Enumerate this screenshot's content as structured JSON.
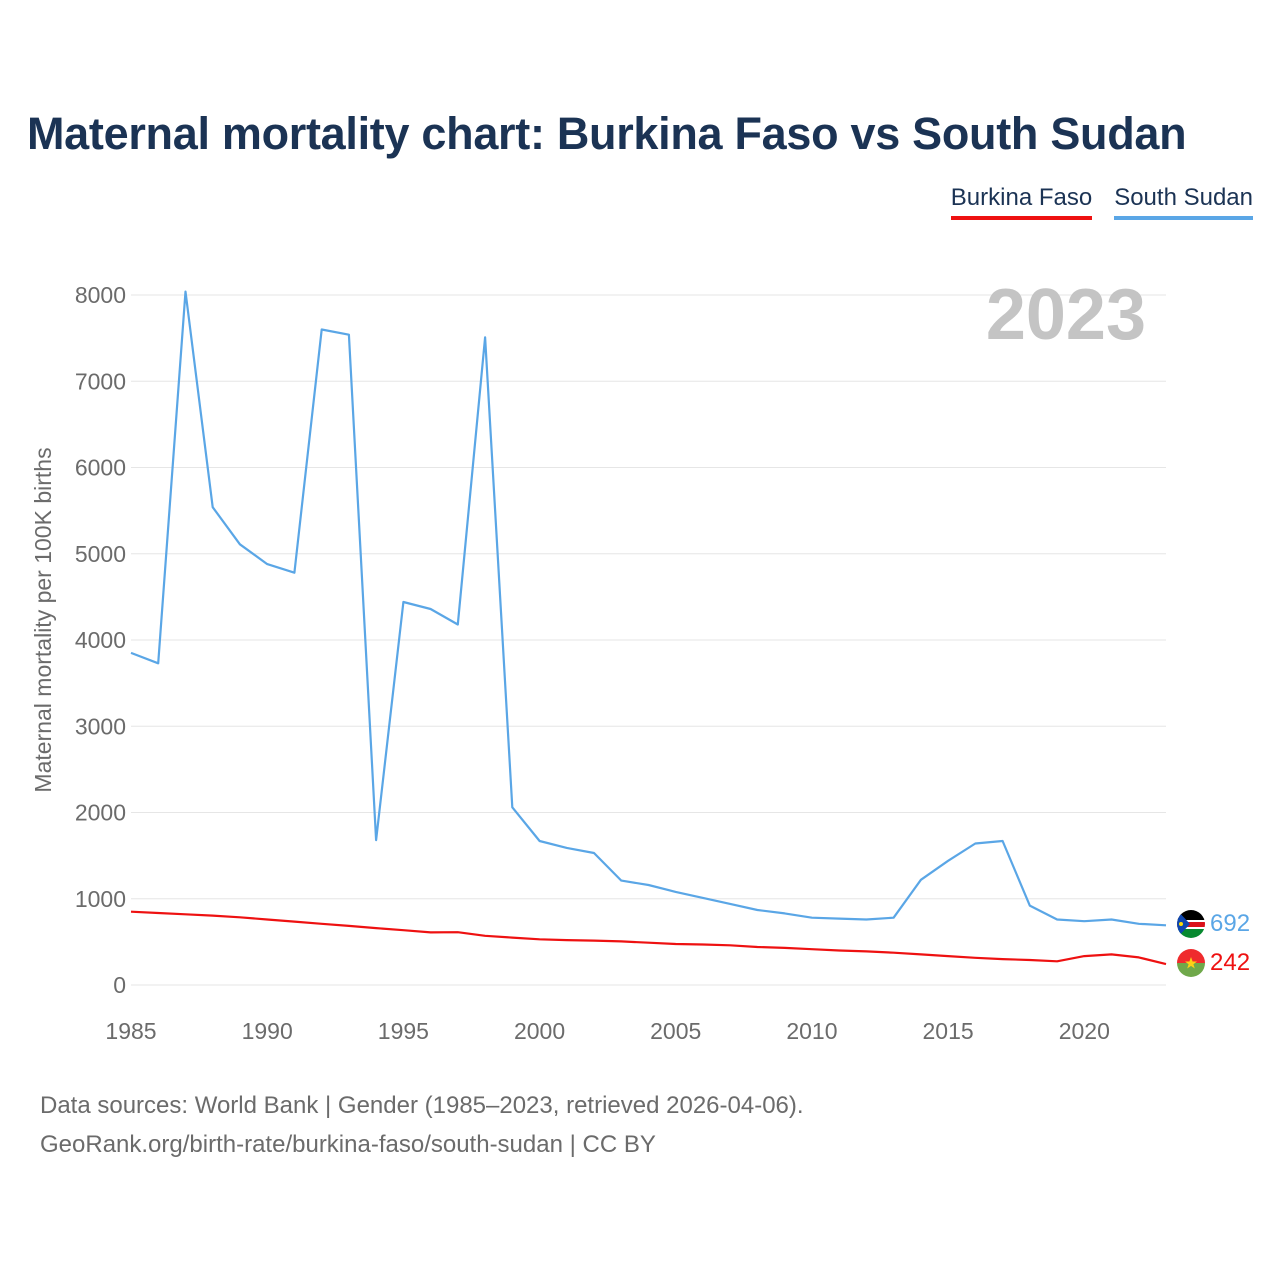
{
  "title": "Maternal mortality chart: Burkina Faso vs South Sudan",
  "legend": [
    {
      "label": "Burkina Faso",
      "color": "#ee1111"
    },
    {
      "label": "South Sudan",
      "color": "#5aa6e6"
    }
  ],
  "year_label": "2023",
  "source": {
    "line1": "Data sources: World Bank | Gender (1985–2023, retrieved 2026-04-06).",
    "line2": "GeoRank.org/birth-rate/burkina-faso/south-sudan | CC BY"
  },
  "chart_data": {
    "type": "line",
    "title": "Maternal mortality chart: Burkina Faso vs South Sudan",
    "xlabel": "",
    "ylabel": "Maternal mortality per 100K births",
    "xlim": [
      1985,
      2023
    ],
    "ylim": [
      0,
      8000
    ],
    "x_ticks": [
      1985,
      1990,
      1995,
      2000,
      2005,
      2010,
      2015,
      2020
    ],
    "y_ticks": [
      0,
      1000,
      2000,
      3000,
      4000,
      5000,
      6000,
      7000,
      8000
    ],
    "grid": true,
    "legend_position": "top-right",
    "x": [
      1985,
      1986,
      1987,
      1988,
      1989,
      1990,
      1991,
      1992,
      1993,
      1994,
      1995,
      1996,
      1997,
      1998,
      1999,
      2000,
      2001,
      2002,
      2003,
      2004,
      2005,
      2006,
      2007,
      2008,
      2009,
      2010,
      2011,
      2012,
      2013,
      2014,
      2015,
      2016,
      2017,
      2018,
      2019,
      2020,
      2021,
      2022,
      2023
    ],
    "series": [
      {
        "name": "Burkina Faso",
        "color": "#ee1111",
        "end_label": "242",
        "values": [
          850,
          835,
          820,
          805,
          785,
          760,
          735,
          710,
          685,
          660,
          635,
          610,
          612,
          570,
          550,
          530,
          520,
          515,
          505,
          490,
          475,
          470,
          460,
          440,
          430,
          415,
          400,
          390,
          375,
          355,
          335,
          315,
          300,
          290,
          275,
          335,
          355,
          320,
          242
        ]
      },
      {
        "name": "South Sudan",
        "color": "#5aa6e6",
        "end_label": "692",
        "values": [
          3850,
          3730,
          8040,
          5540,
          5110,
          4880,
          4780,
          7600,
          7540,
          1680,
          4440,
          4360,
          4180,
          7510,
          2060,
          1670,
          1590,
          1530,
          1210,
          1160,
          1080,
          1010,
          940,
          870,
          830,
          780,
          770,
          760,
          780,
          1220,
          1440,
          1640,
          1670,
          920,
          760,
          740,
          760,
          710,
          692
        ]
      }
    ]
  }
}
